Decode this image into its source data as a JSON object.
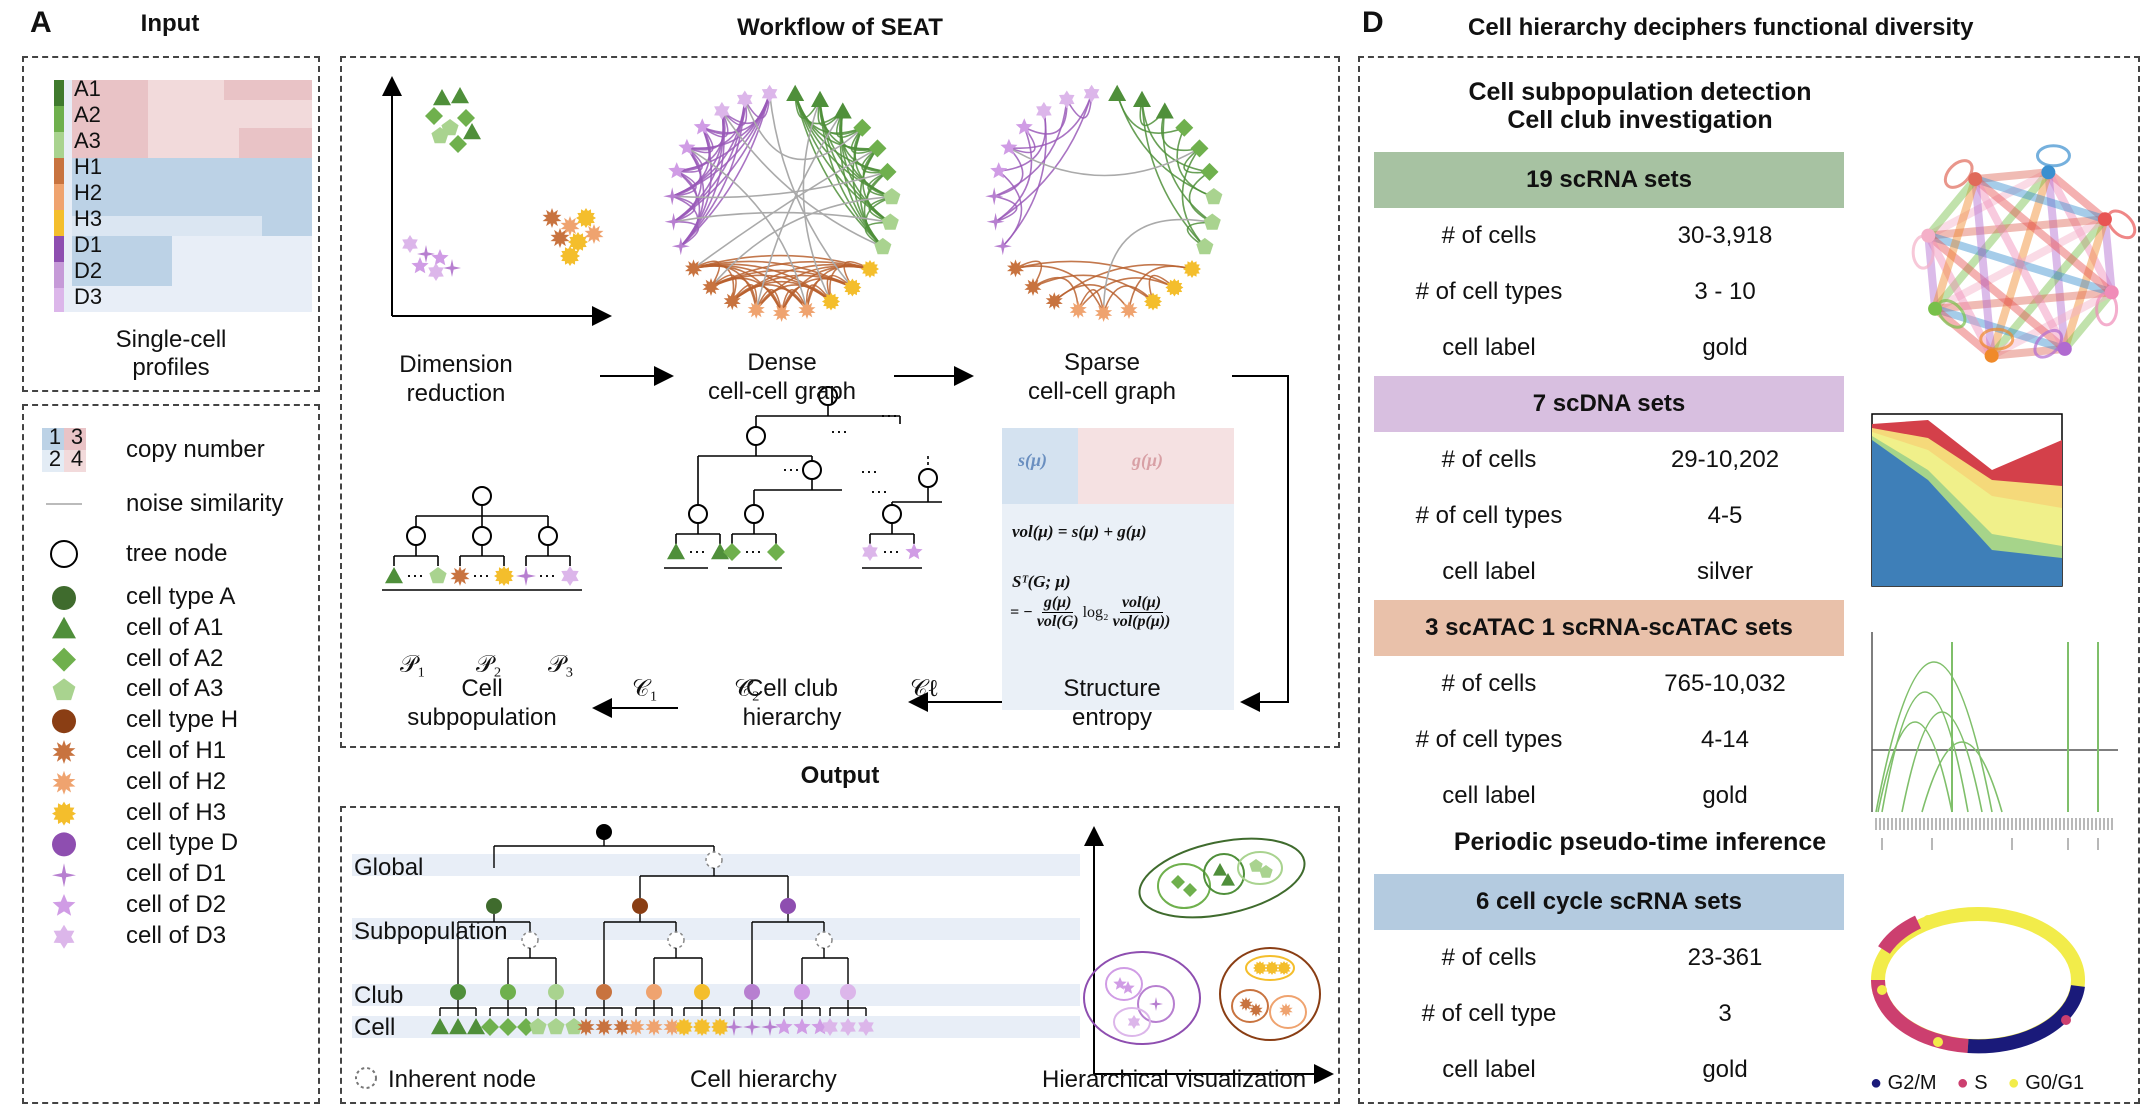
{
  "colors": {
    "A_dark": "#3f6b2d",
    "A1": "#4f8f3a",
    "A2": "#6fb04d",
    "A3": "#a9d38f",
    "H_dark": "#8a3e14",
    "H1": "#c8733f",
    "H2": "#efa36f",
    "H3": "#f4be2c",
    "D_dark": "#8e4eb0",
    "D1": "#b77fd0",
    "D2": "#d09ce5",
    "D3": "#dcb6ea",
    "copy1": "#bcd2e6",
    "copy2": "#e3ecf5",
    "copy3": "#e9c3c6",
    "copy4": "#f2dadb",
    "green_bar": "#a7c2a2",
    "purple_bar": "#d8bfe0",
    "peach_bar": "#e9c1aa",
    "blue_bar": "#b4cbe0",
    "g2m": "#1a1a7a",
    "s": "#cc3f6f",
    "g0g1": "#f2ec4a"
  },
  "panel_A": {
    "letter": "A",
    "title": "Input",
    "row_labels": [
      "A1",
      "A2",
      "A3",
      "H1",
      "H2",
      "H3",
      "D1",
      "D2",
      "D3"
    ],
    "caption_line1": "Single-cell",
    "caption_line2": "profiles"
  },
  "legend": {
    "copy_number": {
      "digits": [
        "1",
        "3",
        "2",
        "4"
      ],
      "label": "copy number"
    },
    "noise": "noise similarity",
    "tree_node": "tree node",
    "items": [
      {
        "label": "cell type A",
        "shape": "circle-icon"
      },
      {
        "label": "cell of A1",
        "shape": "triangle-icon"
      },
      {
        "label": "cell of A2",
        "shape": "diamond-icon"
      },
      {
        "label": "cell of A3",
        "shape": "pentagon-icon"
      },
      {
        "label": "cell type H",
        "shape": "circle-icon"
      },
      {
        "label": "cell of H1",
        "shape": "burst-icon"
      },
      {
        "label": "cell of H2",
        "shape": "burst-icon"
      },
      {
        "label": "cell of H3",
        "shape": "sun-icon"
      },
      {
        "label": "cell type D",
        "shape": "circle-icon"
      },
      {
        "label": "cell of D1",
        "shape": "four-star-icon"
      },
      {
        "label": "cell of D2",
        "shape": "five-star-icon"
      },
      {
        "label": "cell of D3",
        "shape": "six-star-icon"
      }
    ]
  },
  "workflow": {
    "title": "Workflow of SEAT",
    "step_dim_1": "Dimension",
    "step_dim_2": "reduction",
    "step_dense_1": "Dense",
    "step_dense_2": "cell-cell graph",
    "step_sparse_1": "Sparse",
    "step_sparse_2": "cell-cell graph",
    "step_entropy_1": "Structure",
    "step_entropy_2": "entropy",
    "step_club_1": "Cell club",
    "step_club_2": "hierarchy",
    "step_subpop_1": "Cell",
    "step_subpop_2": "subpopulation",
    "formula_s": "s(μ)",
    "formula_g": "g(μ)",
    "formula_vol": "vol(μ) = s(μ) + g(μ)",
    "formula_se": "Sᵀ(G; μ)",
    "formula_frac1_num": "g(μ)",
    "formula_frac1_den": "vol(G)",
    "formula_log": "log₂",
    "formula_frac2_num": "vol(μ)",
    "formula_frac2_den": "vol(p(μ))",
    "formula_eq": "= −",
    "P_labels": [
      "𝒫₁",
      "𝒫₂",
      "𝒫₃"
    ],
    "C_labels": [
      "𝒞₁",
      "𝒞₂",
      "𝒞ℓ"
    ],
    "ellipsis": "⋯"
  },
  "output": {
    "title": "Output",
    "levels": [
      "Global",
      "Subpopulation",
      "Club",
      "Cell"
    ],
    "inherent": "Inherent node",
    "hierarchy": "Cell hierarchy",
    "visualization": "Hierarchical visualization"
  },
  "panel_D": {
    "letter": "D",
    "title": "Cell hierarchy deciphers functional diversity",
    "heading1": "Cell subpopulation detection",
    "heading2": "Cell club investigation",
    "heading3": "Periodic pseudo-time inference",
    "sets": [
      {
        "name": "19 scRNA sets",
        "rows": [
          [
            "# of cells",
            "30-3,918"
          ],
          [
            "# of cell types",
            "3 - 10"
          ],
          [
            "cell label",
            "gold"
          ]
        ]
      },
      {
        "name": "7 scDNA sets",
        "rows": [
          [
            "# of cells",
            "29-10,202"
          ],
          [
            "# of cell types",
            "4-5"
          ],
          [
            "cell label",
            "silver"
          ]
        ]
      },
      {
        "name": "3 scATAC 1 scRNA-scATAC sets",
        "rows": [
          [
            "# of cells",
            "765-10,032"
          ],
          [
            "# of cell types",
            "4-14"
          ],
          [
            "cell label",
            "gold"
          ]
        ]
      },
      {
        "name": "6 cell cycle scRNA sets",
        "rows": [
          [
            "# of cells",
            "23-361"
          ],
          [
            "# of cell type",
            "3"
          ],
          [
            "cell label",
            "gold"
          ]
        ]
      }
    ],
    "cycle_legend": [
      "G2/M",
      "S",
      "G0/G1"
    ]
  }
}
